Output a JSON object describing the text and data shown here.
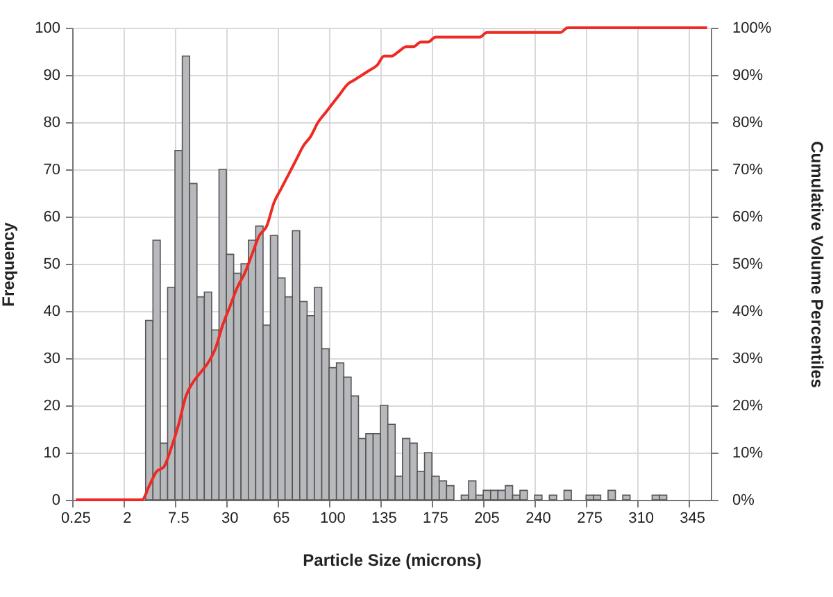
{
  "chart_data": {
    "type": "bar",
    "xlabel": "Particle Size (microns)",
    "ylabel": "Frequency",
    "y2label": "Cumulative Volume Percentiles",
    "categories": [
      "0.25",
      null,
      null,
      null,
      null,
      null,
      null,
      "2",
      null,
      null,
      null,
      null,
      null,
      null,
      "7.5",
      null,
      null,
      null,
      null,
      null,
      null,
      "30",
      null,
      null,
      null,
      null,
      null,
      null,
      "65",
      null,
      null,
      null,
      null,
      null,
      null,
      "100",
      null,
      null,
      null,
      null,
      null,
      null,
      "135",
      null,
      null,
      null,
      null,
      null,
      null,
      "175",
      null,
      null,
      null,
      null,
      null,
      null,
      "205",
      null,
      null,
      null,
      null,
      null,
      null,
      "240",
      null,
      null,
      null,
      null,
      null,
      null,
      "275",
      null,
      null,
      null,
      null,
      null,
      null,
      "310",
      null,
      null,
      null,
      null,
      null,
      null,
      "345",
      null,
      null
    ],
    "series": [
      {
        "color": "#b8b9bd",
        "values": [
          0,
          0,
          0,
          0,
          0,
          0,
          0,
          0,
          0,
          0,
          38,
          55,
          12,
          45,
          74,
          94,
          67,
          43,
          44,
          36,
          70,
          52,
          48,
          50,
          55,
          58,
          37,
          56,
          47,
          43,
          57,
          42,
          39,
          45,
          32,
          28,
          29,
          26,
          22,
          13,
          14,
          14,
          20,
          16,
          5,
          13,
          12,
          6,
          10,
          5,
          4,
          3,
          0,
          1,
          4,
          1,
          2,
          2,
          2,
          3,
          1,
          2,
          0,
          1,
          0,
          1,
          0,
          2,
          0,
          0,
          1,
          1,
          0,
          2,
          0,
          1,
          0,
          0,
          0,
          1,
          1,
          0,
          0,
          0,
          0,
          0,
          0
        ]
      },
      {
        "type": "line",
        "axis": "y2",
        "color": "#ee2a24",
        "values": [
          0,
          0,
          0,
          0,
          0,
          0,
          0,
          0,
          0,
          0,
          3,
          6,
          7,
          11,
          16,
          22,
          25,
          27,
          29,
          32,
          37,
          41,
          45,
          48,
          52,
          56,
          58,
          63,
          66,
          69,
          72,
          75,
          77,
          80,
          82,
          84,
          86,
          88,
          89,
          90,
          91,
          92,
          94,
          94,
          95,
          96,
          96,
          97,
          97,
          98,
          98,
          98,
          98,
          98,
          98,
          98,
          99,
          99,
          99,
          99,
          99,
          99,
          99,
          99,
          99,
          99,
          99,
          100,
          100,
          100,
          100,
          100,
          100,
          100,
          100,
          100,
          100,
          100,
          100,
          100,
          100,
          100,
          100,
          100,
          100,
          100,
          100
        ]
      }
    ],
    "ylim": [
      0,
      100
    ],
    "yticks": [
      0,
      10,
      20,
      30,
      40,
      50,
      60,
      70,
      80,
      90,
      100
    ],
    "y2lim": [
      0,
      100
    ],
    "y2ticks": [
      {
        "value": 0,
        "label": "0%"
      },
      {
        "value": 10,
        "label": "10%"
      },
      {
        "value": 20,
        "label": "20%"
      },
      {
        "value": 30,
        "label": "30%"
      },
      {
        "value": 40,
        "label": "40%"
      },
      {
        "value": 50,
        "label": "50%"
      },
      {
        "value": 60,
        "label": "60%"
      },
      {
        "value": 70,
        "label": "70%"
      },
      {
        "value": 80,
        "label": "80%"
      },
      {
        "value": 90,
        "label": "90%"
      },
      {
        "value": 100,
        "label": "100%"
      }
    ],
    "grid": true
  }
}
